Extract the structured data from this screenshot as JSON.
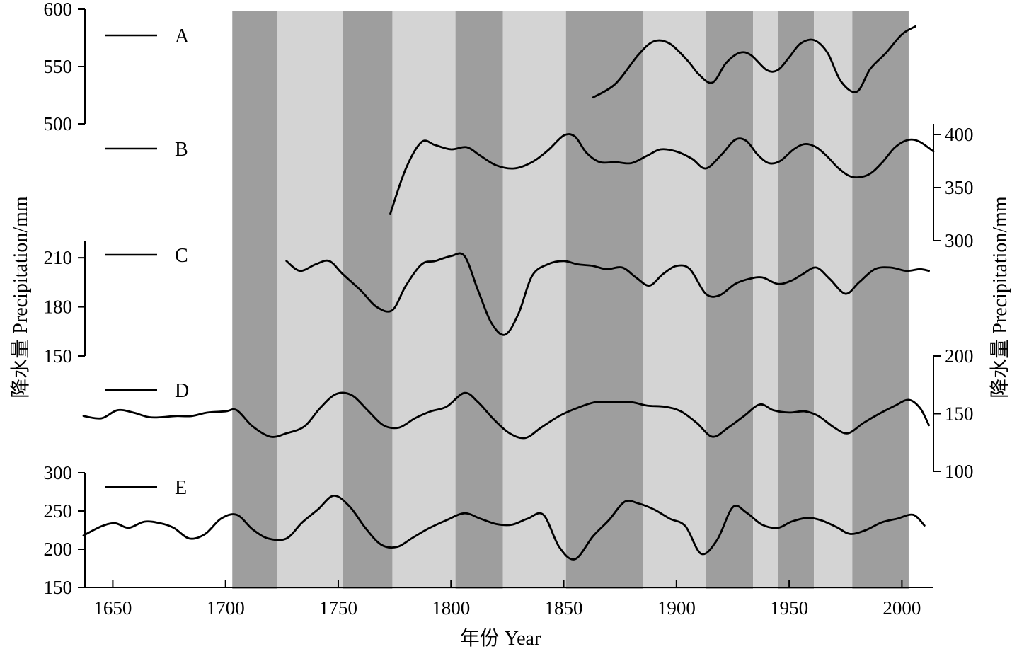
{
  "chart_data": {
    "type": "line",
    "xlabel": "年份 Year",
    "ylabel_left": "降水量 Precipitation/mm",
    "ylabel_right": "降水量 Precipitation/mm",
    "xlim": [
      1637,
      2014
    ],
    "x_ticks": [
      1650,
      1700,
      1750,
      1800,
      1850,
      1900,
      1950,
      2000
    ],
    "colors": {
      "band_dark": "#9e9e9e",
      "band_light": "#d4d4d4",
      "line": "#000000"
    },
    "bands": [
      {
        "start": 1703,
        "end": 1723,
        "shade": "dark"
      },
      {
        "start": 1723,
        "end": 1752,
        "shade": "light"
      },
      {
        "start": 1752,
        "end": 1774,
        "shade": "dark"
      },
      {
        "start": 1774,
        "end": 1802,
        "shade": "light"
      },
      {
        "start": 1802,
        "end": 1823,
        "shade": "dark"
      },
      {
        "start": 1823,
        "end": 1851,
        "shade": "light"
      },
      {
        "start": 1851,
        "end": 1885,
        "shade": "dark"
      },
      {
        "start": 1885,
        "end": 1913,
        "shade": "light"
      },
      {
        "start": 1913,
        "end": 1934,
        "shade": "dark"
      },
      {
        "start": 1934,
        "end": 1945,
        "shade": "light"
      },
      {
        "start": 1945,
        "end": 1961,
        "shade": "dark"
      },
      {
        "start": 1961,
        "end": 1978,
        "shade": "light"
      },
      {
        "start": 1978,
        "end": 2003,
        "shade": "dark"
      }
    ],
    "series": [
      {
        "name": "A",
        "axis_side": "left",
        "ylim": [
          500,
          600
        ],
        "ticks": [
          500,
          550,
          600
        ],
        "x": [
          1863,
          1873,
          1883,
          1890,
          1897,
          1905,
          1910,
          1916,
          1922,
          1928,
          1933,
          1940,
          1945,
          1950,
          1955,
          1961,
          1967,
          1973,
          1980,
          1986,
          1993,
          2000,
          2006
        ],
        "values": [
          523,
          535,
          560,
          572,
          570,
          555,
          543,
          536,
          553,
          562,
          560,
          547,
          547,
          558,
          570,
          573,
          562,
          537,
          528,
          548,
          562,
          578,
          585
        ]
      },
      {
        "name": "B",
        "axis_side": "right",
        "ylim": [
          300,
          410
        ],
        "ticks": [
          300,
          350,
          400
        ],
        "x": [
          1773,
          1780,
          1787,
          1793,
          1800,
          1807,
          1813,
          1820,
          1828,
          1836,
          1843,
          1850,
          1855,
          1860,
          1866,
          1873,
          1880,
          1887,
          1893,
          1900,
          1907,
          1913,
          1920,
          1926,
          1931,
          1936,
          1941,
          1946,
          1952,
          1957,
          1962,
          1967,
          1972,
          1978,
          1985,
          1991,
          1997,
          2003,
          2008,
          2014
        ],
        "values": [
          325,
          368,
          393,
          390,
          386,
          388,
          380,
          371,
          368,
          374,
          385,
          399,
          398,
          383,
          374,
          374,
          373,
          380,
          386,
          384,
          377,
          368,
          381,
          395,
          394,
          381,
          373,
          375,
          386,
          391,
          388,
          379,
          368,
          360,
          362,
          373,
          388,
          395,
          393,
          384
        ]
      },
      {
        "name": "C",
        "axis_side": "left",
        "ylim": [
          150,
          220
        ],
        "ticks": [
          150,
          180,
          210
        ],
        "x": [
          1727,
          1733,
          1740,
          1746,
          1752,
          1760,
          1767,
          1774,
          1780,
          1787,
          1793,
          1800,
          1806,
          1812,
          1818,
          1824,
          1830,
          1836,
          1843,
          1850,
          1856,
          1863,
          1869,
          1876,
          1882,
          1888,
          1894,
          1900,
          1906,
          1913,
          1919,
          1926,
          1932,
          1938,
          1945,
          1951,
          1956,
          1962,
          1968,
          1975,
          1981,
          1988,
          1995,
          2002,
          2008,
          2012
        ],
        "values": [
          208,
          202,
          206,
          208,
          200,
          190,
          180,
          178,
          193,
          206,
          208,
          211,
          211,
          190,
          170,
          163,
          176,
          199,
          206,
          208,
          206,
          205,
          203,
          204,
          198,
          193,
          200,
          205,
          203,
          188,
          187,
          194,
          197,
          198,
          194,
          196,
          200,
          204,
          197,
          188,
          195,
          203,
          204,
          202,
          203,
          202
        ]
      },
      {
        "name": "D",
        "axis_side": "right",
        "ylim": [
          100,
          200
        ],
        "ticks": [
          100,
          150,
          200
        ],
        "x": [
          1637,
          1645,
          1652,
          1659,
          1666,
          1672,
          1678,
          1685,
          1692,
          1700,
          1705,
          1712,
          1720,
          1727,
          1735,
          1742,
          1749,
          1756,
          1763,
          1770,
          1777,
          1784,
          1791,
          1798,
          1806,
          1812,
          1819,
          1826,
          1833,
          1840,
          1848,
          1856,
          1864,
          1872,
          1880,
          1887,
          1895,
          1902,
          1909,
          1916,
          1923,
          1930,
          1937,
          1943,
          1950,
          1957,
          1963,
          1970,
          1976,
          1983,
          1990,
          1997,
          2003,
          2008,
          2012
        ],
        "values": [
          148,
          146,
          153,
          151,
          147,
          147,
          148,
          148,
          151,
          152,
          153,
          139,
          130,
          133,
          139,
          155,
          167,
          166,
          153,
          140,
          138,
          146,
          152,
          156,
          168,
          160,
          145,
          133,
          129,
          138,
          148,
          155,
          160,
          160,
          160,
          157,
          156,
          152,
          142,
          130,
          138,
          148,
          158,
          153,
          151,
          152,
          148,
          138,
          133,
          142,
          150,
          157,
          162,
          155,
          140
        ]
      },
      {
        "name": "E",
        "axis_side": "left",
        "ylim": [
          150,
          300
        ],
        "ticks": [
          150,
          200,
          250,
          300
        ],
        "x": [
          1637,
          1645,
          1651,
          1657,
          1664,
          1671,
          1677,
          1684,
          1691,
          1698,
          1705,
          1712,
          1719,
          1727,
          1734,
          1741,
          1748,
          1755,
          1762,
          1769,
          1776,
          1783,
          1790,
          1798,
          1806,
          1813,
          1820,
          1827,
          1834,
          1841,
          1848,
          1855,
          1863,
          1870,
          1877,
          1883,
          1890,
          1897,
          1904,
          1911,
          1918,
          1925,
          1931,
          1938,
          1945,
          1951,
          1958,
          1964,
          1971,
          1977,
          1984,
          1991,
          1998,
          2005,
          2010
        ],
        "values": [
          218,
          230,
          234,
          228,
          236,
          234,
          228,
          214,
          220,
          240,
          245,
          226,
          214,
          214,
          235,
          252,
          270,
          256,
          228,
          206,
          203,
          215,
          227,
          238,
          247,
          240,
          233,
          232,
          240,
          245,
          203,
          187,
          217,
          238,
          262,
          260,
          252,
          240,
          230,
          194,
          212,
          255,
          248,
          232,
          228,
          236,
          241,
          238,
          229,
          220,
          225,
          235,
          240,
          245,
          231
        ]
      }
    ],
    "legend_placement": "left, beside each series"
  }
}
